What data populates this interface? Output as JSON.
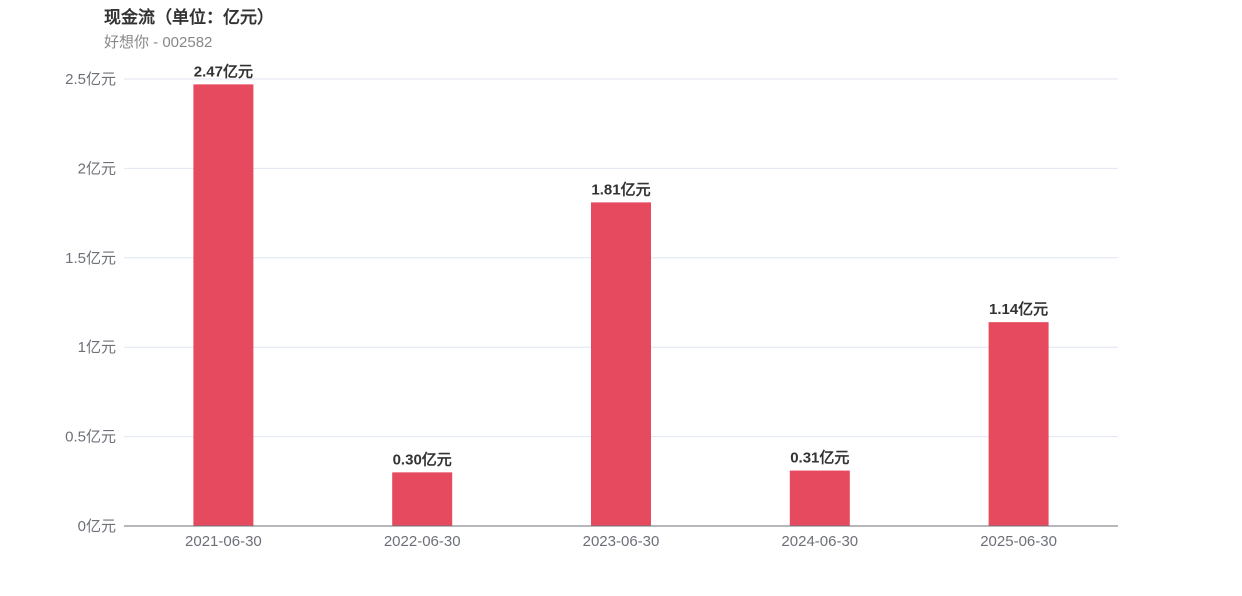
{
  "chart_data": {
    "type": "bar",
    "title": "现金流（单位：亿元）",
    "subtitle": "好想你 - 002582",
    "categories": [
      "2021-06-30",
      "2022-06-30",
      "2023-06-30",
      "2024-06-30",
      "2025-06-30"
    ],
    "values": [
      2.47,
      0.3,
      1.81,
      0.31,
      1.14
    ],
    "data_labels": [
      "2.47亿元",
      "0.30亿元",
      "1.81亿元",
      "0.31亿元",
      "1.14亿元"
    ],
    "ylim": [
      0,
      2.5
    ],
    "yticks": [
      0,
      0.5,
      1,
      1.5,
      2,
      2.5
    ],
    "ytick_labels": [
      "0亿元",
      "0.5亿元",
      "1亿元",
      "1.5亿元",
      "2亿元",
      "2.5亿元"
    ],
    "grid": true,
    "bar_color": "#e64a5e"
  }
}
